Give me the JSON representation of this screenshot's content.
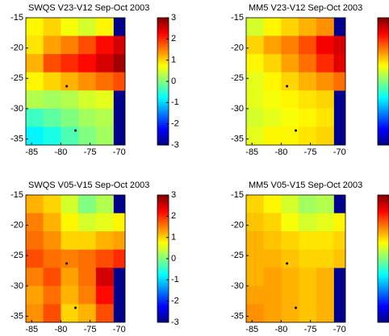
{
  "chart_data": [
    {
      "type": "heatmap",
      "title": "SWQS V23-V12 Sep-Oct 2003",
      "colormap": "jet",
      "land_color": "#00008f",
      "xbins": [
        -86,
        -83,
        -80,
        -77,
        -74,
        -71,
        -69
      ],
      "ybins": [
        -15,
        -18,
        -21,
        -24,
        -27,
        -30,
        -33,
        -36
      ],
      "values": [
        [
          0.8,
          1.0,
          0.7,
          0.5,
          0.8,
          null
        ],
        [
          0.9,
          1.3,
          1.5,
          1.8,
          2.2,
          2.5
        ],
        [
          1.2,
          1.8,
          2.0,
          2.2,
          2.5,
          2.8
        ],
        [
          0.8,
          1.0,
          1.2,
          1.4,
          1.6,
          1.8
        ],
        [
          0.3,
          0.2,
          0.3,
          0.5,
          0.6,
          null
        ],
        [
          -0.4,
          -0.2,
          0.0,
          0.2,
          0.3,
          null
        ],
        [
          -0.8,
          -0.6,
          -0.3,
          0.0,
          0.2,
          null
        ]
      ],
      "points": {
        "x": [
          -79,
          -77.5
        ],
        "y": [
          -26.3,
          -33.6
        ]
      },
      "xlim": [
        -86,
        -69
      ],
      "ylim": [
        -36,
        -15
      ],
      "xticks": [
        -85,
        -80,
        -75,
        -70
      ],
      "yticks": [
        -15,
        -20,
        -25,
        -30,
        -35
      ],
      "clim": [
        -3,
        3
      ],
      "cticks": [
        -3,
        -2,
        -1,
        0,
        1,
        2,
        3
      ]
    },
    {
      "type": "heatmap",
      "title": "MM5 V23-V12 Sep-Oct 2003",
      "colormap": "jet",
      "land_color": "#00008f",
      "xbins": [
        -86,
        -83,
        -80,
        -77,
        -74,
        -71,
        -69
      ],
      "ybins": [
        -15,
        -18,
        -21,
        -24,
        -27,
        -30,
        -33,
        -36
      ],
      "values": [
        [
          0.5,
          0.8,
          1.0,
          1.2,
          1.4,
          null
        ],
        [
          1.0,
          1.3,
          1.5,
          1.8,
          2.3,
          2.5
        ],
        [
          0.8,
          1.0,
          1.3,
          1.6,
          2.0,
          2.4
        ],
        [
          0.6,
          0.8,
          1.0,
          1.2,
          1.4,
          1.6
        ],
        [
          0.6,
          0.7,
          0.8,
          0.9,
          1.0,
          null
        ],
        [
          0.5,
          0.6,
          0.7,
          0.8,
          0.9,
          null
        ],
        [
          0.6,
          0.8,
          0.8,
          0.9,
          1.0,
          null
        ]
      ],
      "points": {
        "x": [
          -79,
          -77.5
        ],
        "y": [
          -26.3,
          -33.6
        ]
      },
      "xlim": [
        -86,
        -69
      ],
      "ylim": [
        -36,
        -15
      ],
      "xticks": [
        -85,
        -80,
        -75,
        -70
      ],
      "yticks": [
        -15,
        -20,
        -25,
        -30,
        -35
      ],
      "clim": [
        -3,
        3
      ]
    },
    {
      "type": "heatmap",
      "title": "SWQS V05-V15 Sep-Oct 2003",
      "colormap": "jet",
      "land_color": "#00008f",
      "xbins": [
        -86,
        -83,
        -80,
        -77,
        -74,
        -71,
        -69
      ],
      "ybins": [
        -15,
        -18,
        -21,
        -24,
        -27,
        -30,
        -33,
        -36
      ],
      "values": [
        [
          1.2,
          1.0,
          0.5,
          0.0,
          0.3,
          null
        ],
        [
          1.5,
          1.2,
          0.8,
          0.5,
          0.6,
          0.8
        ],
        [
          1.6,
          1.4,
          1.0,
          1.0,
          1.2,
          1.3
        ],
        [
          1.8,
          1.6,
          1.5,
          1.6,
          1.8,
          2.0
        ],
        [
          1.5,
          1.8,
          1.3,
          1.6,
          2.5,
          null
        ],
        [
          1.3,
          1.6,
          1.2,
          1.5,
          2.2,
          null
        ],
        [
          1.4,
          1.8,
          1.0,
          1.2,
          1.8,
          null
        ]
      ],
      "points": {
        "x": [
          -79,
          -77.5
        ],
        "y": [
          -26.3,
          -33.6
        ]
      },
      "xlim": [
        -86,
        -69
      ],
      "ylim": [
        -36,
        -15
      ],
      "xticks": [
        -85,
        -80,
        -75,
        -70
      ],
      "yticks": [
        -15,
        -20,
        -25,
        -30,
        -35
      ],
      "clim": [
        -3,
        3
      ],
      "cticks": [
        -3,
        -2,
        -1,
        0,
        1,
        2,
        3
      ]
    },
    {
      "type": "heatmap",
      "title": "MM5 V05-V15 Sep-Oct 2003",
      "colormap": "jet",
      "land_color": "#00008f",
      "xbins": [
        -86,
        -83,
        -80,
        -77,
        -74,
        -71,
        -69
      ],
      "ybins": [
        -15,
        -18,
        -21,
        -24,
        -27,
        -30,
        -33,
        -36
      ],
      "values": [
        [
          1.0,
          0.8,
          0.5,
          0.2,
          0.3,
          null
        ],
        [
          1.1,
          1.0,
          0.7,
          0.5,
          0.6,
          0.8
        ],
        [
          1.2,
          1.1,
          1.0,
          0.9,
          0.9,
          1.0
        ],
        [
          1.2,
          1.2,
          1.1,
          1.0,
          1.0,
          1.1
        ],
        [
          1.2,
          1.3,
          1.2,
          1.1,
          1.2,
          null
        ],
        [
          1.3,
          1.3,
          1.2,
          1.1,
          1.2,
          null
        ],
        [
          1.4,
          1.3,
          1.2,
          1.1,
          1.2,
          null
        ]
      ],
      "points": {
        "x": [
          -79,
          -77.5
        ],
        "y": [
          -26.3,
          -33.6
        ]
      },
      "xlim": [
        -86,
        -69
      ],
      "ylim": [
        -36,
        -15
      ],
      "xticks": [
        -85,
        -80,
        -75,
        -70
      ],
      "yticks": [
        -15,
        -20,
        -25,
        -30,
        -35
      ],
      "clim": [
        -3,
        3
      ]
    }
  ]
}
